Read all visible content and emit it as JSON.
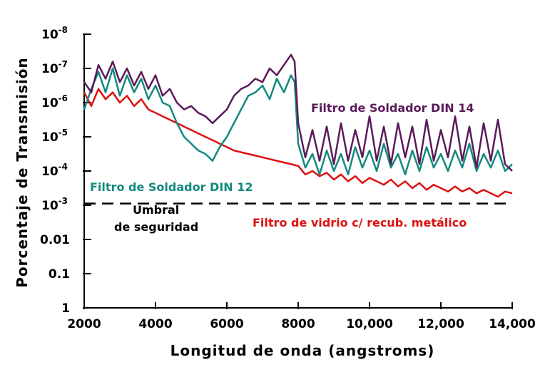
{
  "chart_data": {
    "type": "line",
    "xlabel": "Longitud de onda (angstroms)",
    "ylabel": "Porcentaje de Transmisión",
    "x_ticks": [
      "2000",
      "4000",
      "6000",
      "8000",
      "10,000",
      "12,000",
      "14,000"
    ],
    "xlim": [
      2000,
      14000
    ],
    "y_scale": "log, inverted (1 at bottom, 10^-8 at top)",
    "y_ticks": [
      {
        "base": "10",
        "exp": "-8"
      },
      {
        "base": "10",
        "exp": "-7"
      },
      {
        "base": "10",
        "exp": "-6"
      },
      {
        "base": "10",
        "exp": "-5"
      },
      {
        "base": "10",
        "exp": "-4"
      },
      {
        "base": "10",
        "exp": "-3"
      },
      {
        "base": "0.01",
        "exp": ""
      },
      {
        "base": "0.1",
        "exp": ""
      },
      {
        "base": "1",
        "exp": ""
      }
    ],
    "ylim_exponent": [
      -8,
      0
    ],
    "annotations": [
      {
        "text": "Filtro de Soldador DIN 14",
        "color": "#5a1a5a"
      },
      {
        "text": "Filtro de Soldador DIN 12",
        "color": "#128a7e"
      },
      {
        "text": "Umbral",
        "color": "#000000"
      },
      {
        "text": "de seguridad",
        "color": "#000000"
      },
      {
        "text": "Filtro de vidrio c/ recub. metálico",
        "color": "#dd1111"
      }
    ],
    "threshold": {
      "y_exponent": -3.05,
      "style": "dashed",
      "color": "#000000"
    },
    "series": [
      {
        "color": "#5a1a5a",
        "x": [
          2000,
          2200,
          2400,
          2600,
          2800,
          3000,
          3200,
          3400,
          3600,
          3800,
          4000,
          4200,
          4400,
          4600,
          4800,
          5000,
          5200,
          5400,
          5600,
          5800,
          6000,
          6200,
          6400,
          6600,
          6800,
          7000,
          7200,
          7400,
          7600,
          7800,
          7900,
          8000,
          8200,
          8400,
          8600,
          8800,
          9000,
          9200,
          9400,
          9600,
          9800,
          10000,
          10200,
          10400,
          10600,
          10800,
          11000,
          11200,
          11400,
          11600,
          11800,
          12000,
          12200,
          12400,
          12600,
          12800,
          13000,
          13200,
          13400,
          13600,
          13800,
          14000
        ],
        "y_exponent": [
          -6.6,
          -6.3,
          -7.1,
          -6.7,
          -7.2,
          -6.6,
          -7.0,
          -6.5,
          -6.9,
          -6.4,
          -6.8,
          -6.2,
          -6.4,
          -6.0,
          -5.8,
          -5.9,
          -5.7,
          -5.6,
          -5.4,
          -5.6,
          -5.8,
          -6.2,
          -6.4,
          -6.5,
          -6.7,
          -6.6,
          -7.0,
          -6.8,
          -7.1,
          -7.4,
          -7.2,
          -5.4,
          -4.4,
          -5.2,
          -4.3,
          -5.3,
          -4.2,
          -5.4,
          -4.3,
          -5.2,
          -4.4,
          -5.6,
          -4.3,
          -5.3,
          -4.2,
          -5.4,
          -4.4,
          -5.3,
          -4.2,
          -5.5,
          -4.3,
          -5.2,
          -4.4,
          -5.6,
          -4.3,
          -5.3,
          -4.1,
          -5.4,
          -4.3,
          -5.5,
          -4.2,
          -4.0
        ]
      },
      {
        "color": "#128a7e",
        "x": [
          2000,
          2200,
          2400,
          2600,
          2800,
          3000,
          3200,
          3400,
          3600,
          3800,
          4000,
          4200,
          4400,
          4600,
          4800,
          5000,
          5200,
          5400,
          5600,
          5800,
          6000,
          6200,
          6400,
          6600,
          6800,
          7000,
          7200,
          7400,
          7600,
          7800,
          7900,
          8000,
          8200,
          8400,
          8600,
          8800,
          9000,
          9200,
          9400,
          9600,
          9800,
          10000,
          10200,
          10400,
          10600,
          10800,
          11000,
          11200,
          11400,
          11600,
          11800,
          12000,
          12200,
          12400,
          12600,
          12800,
          13000,
          13200,
          13400,
          13600,
          13800,
          14000
        ],
        "y_exponent": [
          -5.8,
          -6.4,
          -6.9,
          -6.3,
          -7.0,
          -6.2,
          -6.8,
          -6.3,
          -6.7,
          -6.1,
          -6.5,
          -6.0,
          -5.9,
          -5.4,
          -5.0,
          -4.8,
          -4.6,
          -4.5,
          -4.3,
          -4.7,
          -5.0,
          -5.4,
          -5.8,
          -6.2,
          -6.3,
          -6.5,
          -6.1,
          -6.7,
          -6.3,
          -6.8,
          -6.6,
          -4.8,
          -4.1,
          -4.5,
          -3.9,
          -4.6,
          -4.0,
          -4.5,
          -3.9,
          -4.7,
          -4.1,
          -4.6,
          -4.0,
          -4.8,
          -4.1,
          -4.5,
          -3.9,
          -4.6,
          -4.0,
          -4.7,
          -4.1,
          -4.5,
          -4.0,
          -4.6,
          -4.1,
          -4.8,
          -4.0,
          -4.5,
          -4.1,
          -4.6,
          -4.0,
          -4.2
        ]
      },
      {
        "color": "#dd1111",
        "x": [
          2000,
          2200,
          2400,
          2600,
          2800,
          3000,
          3200,
          3400,
          3600,
          3800,
          4000,
          4200,
          4400,
          4600,
          4800,
          5000,
          5200,
          5400,
          5600,
          5800,
          6000,
          6200,
          6400,
          6600,
          6800,
          7000,
          7200,
          7400,
          7600,
          7800,
          8000,
          8200,
          8400,
          8600,
          8800,
          9000,
          9200,
          9400,
          9600,
          9800,
          10000,
          10200,
          10400,
          10600,
          10800,
          11000,
          11200,
          11400,
          11600,
          11800,
          12000,
          12200,
          12400,
          12600,
          12800,
          13000,
          13200,
          13400,
          13600,
          13800,
          14000
        ],
        "y_exponent": [
          -6.3,
          -5.9,
          -6.4,
          -6.1,
          -6.3,
          -6.0,
          -6.2,
          -5.9,
          -6.1,
          -5.8,
          -5.7,
          -5.6,
          -5.5,
          -5.4,
          -5.3,
          -5.2,
          -5.1,
          -5.0,
          -4.9,
          -4.8,
          -4.7,
          -4.6,
          -4.55,
          -4.5,
          -4.45,
          -4.4,
          -4.35,
          -4.3,
          -4.25,
          -4.2,
          -4.15,
          -3.9,
          -4.0,
          -3.85,
          -3.95,
          -3.75,
          -3.9,
          -3.7,
          -3.85,
          -3.65,
          -3.8,
          -3.7,
          -3.6,
          -3.75,
          -3.55,
          -3.7,
          -3.5,
          -3.65,
          -3.45,
          -3.6,
          -3.5,
          -3.4,
          -3.55,
          -3.4,
          -3.5,
          -3.35,
          -3.45,
          -3.35,
          -3.25,
          -3.4,
          -3.35
        ]
      }
    ]
  }
}
